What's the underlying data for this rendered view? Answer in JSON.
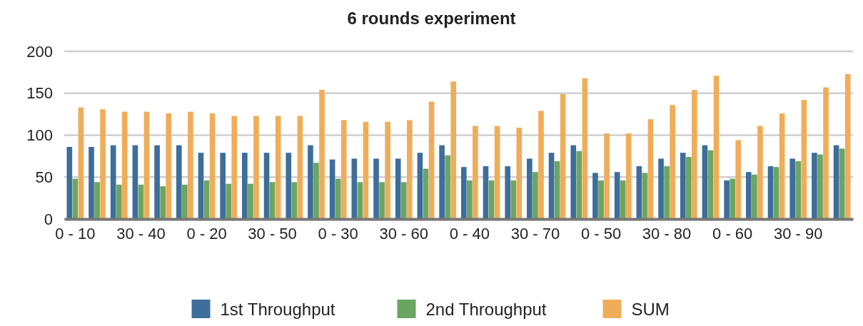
{
  "chart_data": {
    "type": "bar",
    "title": "6 rounds experiment",
    "categories": [
      "0 - 10",
      null,
      null,
      "30 - 40",
      null,
      null,
      "0 - 20",
      null,
      null,
      "30 - 50",
      null,
      null,
      "0 - 30",
      null,
      null,
      "30 - 60",
      null,
      null,
      "0 - 40",
      null,
      null,
      "30 - 70",
      null,
      null,
      "0 - 50",
      null,
      null,
      "30 - 80",
      null,
      null,
      "0 - 60",
      null,
      null,
      "30 - 90",
      null,
      null
    ],
    "series": [
      {
        "name": "1st Throughput",
        "color": "#3d6d9b",
        "values": [
          86,
          86,
          88,
          88,
          88,
          88,
          79,
          79,
          79,
          79,
          79,
          88,
          71,
          72,
          72,
          72,
          79,
          88,
          62,
          63,
          63,
          72,
          79,
          88,
          55,
          56,
          63,
          72,
          79,
          88,
          46,
          56,
          63,
          72,
          79,
          88
        ]
      },
      {
        "name": "2nd Throughput",
        "color": "#6ba562",
        "values": [
          48,
          44,
          41,
          41,
          39,
          41,
          46,
          42,
          42,
          44,
          44,
          67,
          48,
          44,
          44,
          44,
          60,
          76,
          46,
          46,
          46,
          56,
          69,
          81,
          46,
          46,
          55,
          63,
          74,
          82,
          48,
          53,
          62,
          69,
          77,
          84
        ]
      },
      {
        "name": "SUM",
        "color": "#efad5a",
        "values": [
          133,
          131,
          128,
          128,
          126,
          128,
          126,
          123,
          123,
          123,
          123,
          154,
          118,
          116,
          116,
          118,
          140,
          164,
          111,
          111,
          109,
          129,
          149,
          168,
          102,
          102,
          119,
          136,
          154,
          171,
          94,
          111,
          126,
          142,
          157,
          173
        ]
      }
    ],
    "ylim": [
      0,
      200
    ],
    "yticks": [
      0,
      50,
      100,
      150,
      200
    ],
    "grid": "y",
    "legend": "bottom"
  }
}
